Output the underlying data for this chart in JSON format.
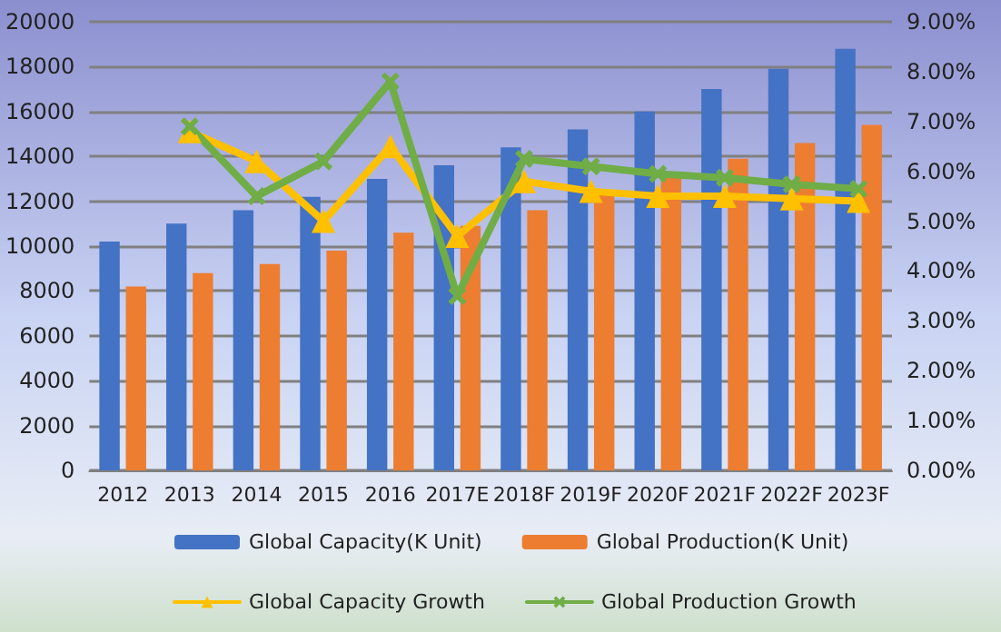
{
  "chart_data": {
    "type": "bar",
    "categories": [
      "2012",
      "2013",
      "2014",
      "2015",
      "2016",
      "2017E",
      "2018F",
      "2019F",
      "2020F",
      "2021F",
      "2022F",
      "2023F"
    ],
    "series": [
      {
        "name": "Global Capacity(K Unit)",
        "color": "#4472c4",
        "values": [
          10200,
          11000,
          11600,
          12200,
          13000,
          13600,
          14400,
          15200,
          16000,
          17000,
          17900,
          18800
        ]
      },
      {
        "name": "Global Production(K Unit)",
        "color": "#ed7d31",
        "values": [
          8200,
          8800,
          9200,
          9800,
          10600,
          10900,
          11600,
          12400,
          13100,
          13900,
          14600,
          15400
        ]
      },
      {
        "name": "Global Capacity Growth",
        "type": "line",
        "axis": "y2",
        "marker": "triangle",
        "color": "#ffc000",
        "values": [
          null,
          6.8,
          6.2,
          5.0,
          6.5,
          4.7,
          5.8,
          5.6,
          5.5,
          5.5,
          5.45,
          5.4
        ]
      },
      {
        "name": "Global Production Growth",
        "type": "line",
        "axis": "y2",
        "marker": "cross",
        "color": "#70ad47",
        "values": [
          null,
          6.9,
          5.5,
          6.2,
          7.8,
          3.5,
          6.25,
          6.1,
          5.95,
          5.87,
          5.74,
          5.65
        ]
      }
    ],
    "ylim": [
      0,
      20000
    ],
    "yticks": [
      0,
      2000,
      4000,
      6000,
      8000,
      10000,
      12000,
      14000,
      16000,
      18000,
      20000
    ],
    "y2lim": [
      0,
      9
    ],
    "y2ticks": [
      {
        "value": 0,
        "label": "0.00%"
      },
      {
        "value": 1,
        "label": "1.00%"
      },
      {
        "value": 2,
        "label": "2.00%"
      },
      {
        "value": 3,
        "label": "3.00%"
      },
      {
        "value": 4,
        "label": "4.00%"
      },
      {
        "value": 5,
        "label": "5.00%"
      },
      {
        "value": 6,
        "label": "6.00%"
      },
      {
        "value": 7,
        "label": "7.00%"
      },
      {
        "value": 8,
        "label": "8.00%"
      },
      {
        "value": 9,
        "label": "9.00%"
      }
    ],
    "grid": "y",
    "legend": "bottom",
    "line_style": "solid"
  }
}
